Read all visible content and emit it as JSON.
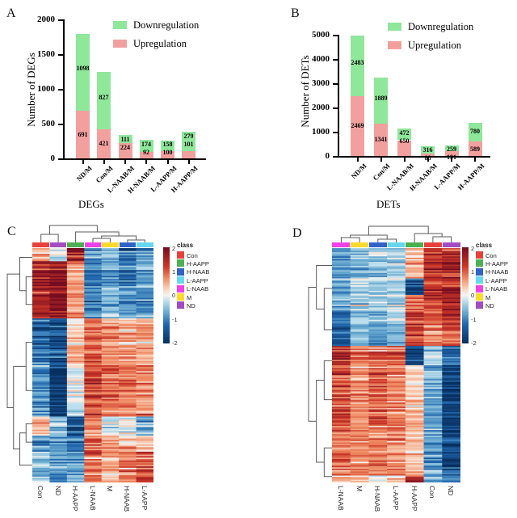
{
  "figure": {
    "background": "#ffffff"
  },
  "panelA": {
    "label": "A",
    "chart_data": {
      "type": "stacked_bar",
      "categories": [
        "ND/M",
        "Con/M",
        "L-NAAB/M",
        "H-NAAB/M",
        "L-AAPP/M",
        "H-AAPP/M"
      ],
      "series": [
        {
          "name": "Upregulation",
          "color": "#F2A09E",
          "values": [
            691,
            421,
            224,
            92,
            100,
            101
          ]
        },
        {
          "name": "Downregulation",
          "color": "#8FE79A",
          "values": [
            1098,
            827,
            111,
            174,
            158,
            279
          ]
        }
      ],
      "xlabel": "DEGs",
      "ylabel": "Number of DEGs",
      "ylim": [
        0,
        2000
      ],
      "yticks": [
        0,
        500,
        1000,
        1500,
        2000
      ],
      "legend": [
        {
          "label": "Downregulation",
          "color": "#8FE79A"
        },
        {
          "label": "Upregulation",
          "color": "#F2A09E"
        }
      ],
      "legend_position": "top-right",
      "grid": false
    }
  },
  "panelB": {
    "label": "B",
    "chart_data": {
      "type": "stacked_bar",
      "categories": [
        "ND/M",
        "Con/M",
        "L-NAAB/M",
        "H-NAAB/M",
        "L-AAPP/M",
        "H-AAPP/M"
      ],
      "series": [
        {
          "name": "Upregulation",
          "color": "#F2A09E",
          "values": [
            2469,
            1341,
            650,
            88,
            191,
            589
          ]
        },
        {
          "name": "Downregulation",
          "color": "#8FE79A",
          "values": [
            2483,
            1889,
            472,
            316,
            259,
            780
          ]
        }
      ],
      "xlabel": "DETs",
      "ylabel": "Number of DETs",
      "ylim": [
        0,
        5000
      ],
      "yticks": [
        0,
        1000,
        2000,
        3000,
        4000,
        5000
      ],
      "legend": [
        {
          "label": "Downregulation",
          "color": "#8FE79A"
        },
        {
          "label": "Upregulation",
          "color": "#F2A09E"
        }
      ],
      "legend_position": "top-right",
      "grid": false
    }
  },
  "panelC": {
    "label": "C",
    "chart_data": {
      "type": "heatmap",
      "columns": [
        "Con",
        "ND",
        "H-AAPP",
        "L-NAAB",
        "M",
        "H-NAAB",
        "L-AAPP"
      ],
      "class_colors": {
        "Con": "#E8413A",
        "H-AAPP": "#4CAF50",
        "H-NAAB": "#2F63C8",
        "L-AAPP": "#67D6F0",
        "L-NAAB": "#F042E8",
        "M": "#FFD92B",
        "ND": "#A44BC4"
      },
      "legend_title": "class",
      "legend_items": [
        "Con",
        "H-AAPP",
        "H-NAAB",
        "L-AAPP",
        "L-NAAB",
        "M",
        "ND"
      ],
      "colorbar_ticks": [
        "2",
        "1",
        "0",
        "-1",
        "-2"
      ],
      "colorbar_range": [
        -2,
        2
      ],
      "colorbar_gradient": [
        "#730C20",
        "#CB3628",
        "#EF8A62",
        "#FAD8C3",
        "#F7F3F0",
        "#BDDEEC",
        "#67A9CF",
        "#2166AC",
        "#072F5F"
      ],
      "colorbar_gradient_pos": [
        0,
        0.2,
        0.32,
        0.44,
        0.5,
        0.56,
        0.68,
        0.8,
        1
      ],
      "n_rows": 160,
      "row_blocks": [
        {
          "from": 0.0,
          "to": 0.055,
          "means": [
            0.4,
            -0.3,
            1.6,
            -0.9,
            -0.6,
            -1.2,
            -0.8
          ]
        },
        {
          "from": 0.055,
          "to": 0.17,
          "means": [
            1.4,
            1.6,
            0.5,
            -1.1,
            -0.8,
            -1.0,
            -0.7
          ]
        },
        {
          "from": 0.17,
          "to": 0.3,
          "means": [
            1.6,
            1.9,
            0.7,
            -0.9,
            -0.5,
            -0.9,
            -0.9
          ]
        },
        {
          "from": 0.3,
          "to": 0.5,
          "means": [
            -1.3,
            -1.6,
            0.4,
            0.9,
            0.7,
            0.6,
            0.6
          ]
        },
        {
          "from": 0.5,
          "to": 0.72,
          "means": [
            -0.9,
            -1.9,
            -0.1,
            1.1,
            0.9,
            0.8,
            0.7
          ]
        },
        {
          "from": 0.72,
          "to": 0.8,
          "means": [
            0.3,
            -0.5,
            -1.5,
            0.7,
            -0.3,
            -0.2,
            -0.7
          ]
        },
        {
          "from": 0.8,
          "to": 0.87,
          "means": [
            -1.0,
            -0.9,
            -1.2,
            0.9,
            0.5,
            0.4,
            0.3
          ]
        },
        {
          "from": 0.87,
          "to": 1.0,
          "means": [
            -0.5,
            -0.8,
            -0.8,
            0.8,
            0.4,
            0.7,
            1.1
          ]
        }
      ]
    }
  },
  "panelD": {
    "label": "D",
    "chart_data": {
      "type": "heatmap",
      "columns": [
        "L-NAAB",
        "M",
        "H-NAAB",
        "L-AAPP",
        "H-AAPP",
        "Con",
        "ND"
      ],
      "class_colors": {
        "Con": "#E8413A",
        "H-AAPP": "#4CAF50",
        "H-NAAB": "#2F63C8",
        "L-AAPP": "#67D6F0",
        "L-NAAB": "#F042E8",
        "M": "#FFD92B",
        "ND": "#A44BC4"
      },
      "legend_title": "class",
      "legend_items": [
        "Con",
        "H-AAPP",
        "H-NAAB",
        "L-AAPP",
        "L-NAAB",
        "M",
        "ND"
      ],
      "colorbar_ticks": [
        "2",
        "1",
        "0",
        "-1",
        "-2"
      ],
      "colorbar_range": [
        -2,
        2
      ],
      "colorbar_gradient": [
        "#730C20",
        "#CB3628",
        "#EF8A62",
        "#FAD8C3",
        "#F7F3F0",
        "#BDDEEC",
        "#67A9CF",
        "#2166AC",
        "#072F5F"
      ],
      "colorbar_gradient_pos": [
        0,
        0.2,
        0.32,
        0.44,
        0.5,
        0.56,
        0.68,
        0.8,
        1
      ],
      "n_rows": 170,
      "row_blocks": [
        {
          "from": 0.0,
          "to": 0.13,
          "means": [
            -0.9,
            -0.6,
            -0.5,
            -0.4,
            0.5,
            1.4,
            1.7
          ]
        },
        {
          "from": 0.13,
          "to": 0.2,
          "means": [
            -0.7,
            -0.4,
            -0.5,
            -0.3,
            -1.6,
            1.2,
            1.5
          ]
        },
        {
          "from": 0.2,
          "to": 0.27,
          "means": [
            -0.6,
            -0.3,
            -0.3,
            -0.3,
            0.8,
            1.1,
            1.4
          ]
        },
        {
          "from": 0.27,
          "to": 0.42,
          "means": [
            -1.2,
            -0.5,
            -0.7,
            -0.5,
            1.2,
            0.8,
            1.0
          ]
        },
        {
          "from": 0.42,
          "to": 0.5,
          "means": [
            1.5,
            0.8,
            0.9,
            0.9,
            -1.6,
            -0.4,
            -1.2
          ]
        },
        {
          "from": 0.5,
          "to": 0.75,
          "means": [
            1.1,
            0.7,
            1.0,
            0.8,
            0.3,
            -0.7,
            -1.7
          ]
        },
        {
          "from": 0.75,
          "to": 0.97,
          "means": [
            0.9,
            0.8,
            0.8,
            0.7,
            0.4,
            -0.9,
            -1.8
          ]
        },
        {
          "from": 0.97,
          "to": 1.0,
          "means": [
            0.3,
            0.2,
            -0.3,
            0.2,
            1.3,
            -1.0,
            -1.2
          ]
        }
      ]
    }
  }
}
